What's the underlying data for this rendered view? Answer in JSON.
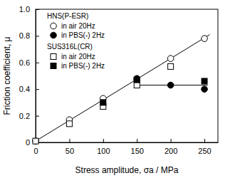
{
  "chart_data": {
    "type": "scatter",
    "x_label": "Stress amplitude, σa / MPa",
    "y_label": "Friction coefficient, μ",
    "xlim": [
      0,
      270
    ],
    "xticks": [
      0,
      50,
      100,
      150,
      200,
      250
    ],
    "ylim": [
      0,
      1
    ],
    "yticks": [
      0,
      0.2,
      0.4,
      0.6,
      0.8,
      {
        "value": 1,
        "label": "1.0"
      }
    ],
    "legend": "upper left",
    "legend_groups": [
      {
        "title": "HNS(P-ESR)",
        "series": [
          0,
          1
        ]
      },
      {
        "title": "SUS316L(CR)",
        "series": [
          2,
          3
        ]
      }
    ],
    "series": [
      {
        "name": "in air 20Hz",
        "type": "scatter",
        "marker": "open-circle",
        "color": "#000000",
        "x": [
          0,
          50,
          100,
          150,
          200,
          250
        ],
        "values": [
          0.01,
          0.17,
          0.33,
          0.47,
          0.63,
          0.78
        ]
      },
      {
        "name": "in PBS(-) 2Hz",
        "type": "scatter",
        "marker": "filled-circle",
        "color": "#000000",
        "x": [
          150,
          200,
          250
        ],
        "values": [
          0.48,
          0.43,
          0.4
        ]
      },
      {
        "name": "in air 20Hz",
        "type": "scatter",
        "marker": "open-square",
        "color": "#000000",
        "x": [
          0,
          50,
          100,
          150,
          200
        ],
        "values": [
          0.01,
          0.14,
          0.27,
          0.43,
          0.57
        ]
      },
      {
        "name": "in PBS(-) 2Hz",
        "type": "scatter",
        "marker": "filled-square",
        "color": "#000000",
        "x": [
          100,
          150,
          250
        ],
        "values": [
          0.3,
          0.47,
          0.46
        ]
      },
      {
        "type": "line",
        "line_style": "solid",
        "color": "#000000",
        "x": [
          0,
          258
        ],
        "values": [
          0.01,
          0.81
        ]
      },
      {
        "type": "line",
        "line_style": "solid",
        "color": "#000000",
        "x": [
          150,
          255
        ],
        "values": [
          0.43,
          0.43
        ]
      }
    ]
  }
}
